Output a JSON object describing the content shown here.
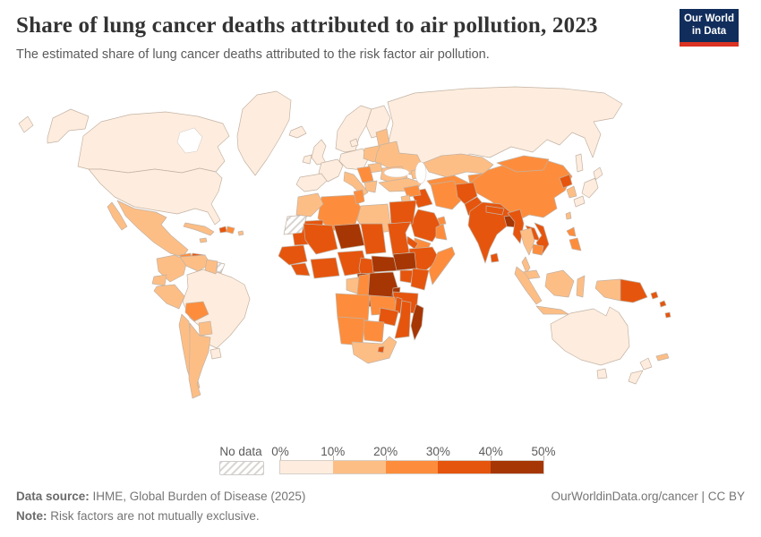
{
  "header": {
    "title": "Share of lung cancer deaths attributed to air pollution, 2023",
    "subtitle": "The estimated share of lung cancer deaths attributed to the risk factor air pollution.",
    "logo": {
      "line1": "Our World",
      "line2": "in Data",
      "bg_color": "#102D5C",
      "stripe_color": "#DB3223"
    }
  },
  "legend": {
    "no_data_label": "No data",
    "tick_labels": [
      "0%",
      "10%",
      "20%",
      "30%",
      "40%",
      "50%"
    ],
    "bin_colors": [
      "#feedde",
      "#fdbe85",
      "#fd8d3c",
      "#e6550d",
      "#a63603"
    ]
  },
  "footer": {
    "datasource_label": "Data source:",
    "datasource_text": " IHME, Global Burden of Disease (2025)",
    "note_label": "Note:",
    "note_text": " Risk factors are not mutually exclusive.",
    "right_text": "OurWorldinData.org/cancer | CC BY"
  },
  "map": {
    "water_color": "#ffffff",
    "border_color": "#c3b2a3",
    "hatch_color": "#d8d4d1"
  },
  "chart_data": {
    "type": "heatmap",
    "subtype": "choropleth_world_map",
    "title": "Share of lung cancer deaths attributed to air pollution, 2023",
    "subtitle": "The estimated share of lung cancer deaths attributed to the risk factor air pollution.",
    "unit": "share of lung cancer deaths",
    "year": 2023,
    "legend_position": "bottom",
    "bins": [
      {
        "range": "0-10%",
        "color": "#feedde"
      },
      {
        "range": "10-20%",
        "color": "#fdbe85"
      },
      {
        "range": "20-30%",
        "color": "#fd8d3c"
      },
      {
        "range": "30-40%",
        "color": "#e6550d"
      },
      {
        "range": "40-50%",
        "color": "#a63603"
      }
    ],
    "no_data": {
      "label": "No data",
      "style": "hatched"
    },
    "regions": {
      "united-states": {
        "label": "United States",
        "bin": 0
      },
      "canada": {
        "label": "Canada",
        "bin": 0
      },
      "greenland": {
        "label": "Greenland",
        "bin": 0
      },
      "iceland": {
        "label": "Iceland",
        "bin": 0
      },
      "mexico": {
        "label": "Mexico",
        "bin": 1
      },
      "guatemala": {
        "label": "Guatemala",
        "bin": 2
      },
      "honduras-nicaragua": {
        "label": "Honduras / Nicaragua",
        "bin": 3
      },
      "costa-rica-panama": {
        "label": "Costa Rica / Panama",
        "bin": 1
      },
      "cuba": {
        "label": "Cuba",
        "bin": 1
      },
      "jamaica": {
        "label": "Jamaica",
        "bin": 1
      },
      "haiti": {
        "label": "Haiti",
        "bin": 3
      },
      "dominican-republic": {
        "label": "Dominican Republic",
        "bin": 2
      },
      "puerto-rico": {
        "label": "Puerto Rico",
        "bin": 1
      },
      "brazil": {
        "label": "Brazil",
        "bin": 0
      },
      "colombia": {
        "label": "Colombia",
        "bin": 1
      },
      "venezuela": {
        "label": "Venezuela",
        "bin": 1
      },
      "guyana-suriname": {
        "label": "Guyana / Suriname",
        "bin": 1
      },
      "french-guiana": {
        "label": "French Guiana",
        "bin": "nd"
      },
      "ecuador": {
        "label": "Ecuador",
        "bin": 1
      },
      "peru": {
        "label": "Peru",
        "bin": 1
      },
      "bolivia": {
        "label": "Bolivia",
        "bin": 2
      },
      "paraguay": {
        "label": "Paraguay",
        "bin": 1
      },
      "chile": {
        "label": "Chile",
        "bin": 1
      },
      "argentina": {
        "label": "Argentina",
        "bin": 1
      },
      "uruguay": {
        "label": "Uruguay",
        "bin": 0
      },
      "norway-sweden": {
        "label": "Norway / Sweden",
        "bin": 0
      },
      "finland": {
        "label": "Finland",
        "bin": 0
      },
      "denmark": {
        "label": "Denmark",
        "bin": 0
      },
      "united-kingdom": {
        "label": "United Kingdom",
        "bin": 0
      },
      "ireland": {
        "label": "Ireland",
        "bin": 0
      },
      "germany-central-europe": {
        "label": "Germany / Central Europe",
        "bin": 0
      },
      "france": {
        "label": "France",
        "bin": 0
      },
      "spain-portugal": {
        "label": "Spain / Portugal",
        "bin": 0
      },
      "poland": {
        "label": "Poland",
        "bin": 1
      },
      "baltic-states": {
        "label": "Baltic states",
        "bin": 1
      },
      "ukraine-belarus": {
        "label": "Ukraine / Belarus",
        "bin": 1
      },
      "hungary-slovakia": {
        "label": "Hungary / Slovakia",
        "bin": 1
      },
      "romania-bulgaria": {
        "label": "Romania / Bulgaria",
        "bin": 1
      },
      "western-balkans": {
        "label": "Western Balkans",
        "bin": 2
      },
      "greece": {
        "label": "Greece",
        "bin": 1
      },
      "italy": {
        "label": "Italy",
        "bin": 1
      },
      "turkey": {
        "label": "Turkey",
        "bin": 1
      },
      "caucasus": {
        "label": "Caucasus",
        "bin": 1
      },
      "russia": {
        "label": "Russia",
        "bin": 0
      },
      "kazakhstan": {
        "label": "Kazakhstan",
        "bin": 1
      },
      "uzbekistan-turkmenistan": {
        "label": "Uzbekistan / Turkmenistan",
        "bin": 2
      },
      "kyrgyzstan-tajikistan": {
        "label": "Kyrgyzstan / Tajikistan",
        "bin": 2
      },
      "china": {
        "label": "China",
        "bin": 2
      },
      "mongolia": {
        "label": "Mongolia",
        "bin": 2
      },
      "north-korea": {
        "label": "North Korea",
        "bin": 3
      },
      "south-korea": {
        "label": "South Korea",
        "bin": 1
      },
      "japan": {
        "label": "Japan",
        "bin": 0
      },
      "taiwan": {
        "label": "Taiwan",
        "bin": 1
      },
      "iran": {
        "label": "Iran",
        "bin": 2
      },
      "afghanistan": {
        "label": "Afghanistan",
        "bin": 3
      },
      "pakistan": {
        "label": "Pakistan",
        "bin": 3
      },
      "iraq": {
        "label": "Iraq",
        "bin": 3
      },
      "syria": {
        "label": "Syria",
        "bin": 2
      },
      "jordan-israel": {
        "label": "Jordan / Israel",
        "bin": 1
      },
      "saudi-arabia": {
        "label": "Saudi Arabia",
        "bin": 3
      },
      "yemen": {
        "label": "Yemen",
        "bin": 2
      },
      "oman": {
        "label": "Oman",
        "bin": 2
      },
      "gulf-states": {
        "label": "Gulf states",
        "bin": 2
      },
      "india": {
        "label": "India",
        "bin": 3
      },
      "nepal": {
        "label": "Nepal",
        "bin": 3
      },
      "bangladesh": {
        "label": "Bangladesh",
        "bin": 4
      },
      "sri-lanka": {
        "label": "Sri Lanka",
        "bin": 3
      },
      "myanmar": {
        "label": "Myanmar",
        "bin": 3
      },
      "laos": {
        "label": "Laos",
        "bin": 3
      },
      "vietnam": {
        "label": "Vietnam",
        "bin": 3
      },
      "cambodia": {
        "label": "Cambodia",
        "bin": 2
      },
      "thailand": {
        "label": "Thailand",
        "bin": 1
      },
      "malaysia": {
        "label": "Malaysia",
        "bin": 1
      },
      "indonesia": {
        "label": "Indonesia",
        "bin": 1
      },
      "philippines": {
        "label": "Philippines",
        "bin": 2
      },
      "timor-leste": {
        "label": "Timor-Leste",
        "bin": 2
      },
      "papua-new-guinea": {
        "label": "Papua New Guinea",
        "bin": 3
      },
      "solomon-islands": {
        "label": "Solomon Islands",
        "bin": 3
      },
      "vanuatu": {
        "label": "Vanuatu",
        "bin": 3
      },
      "new-caledonia": {
        "label": "New Caledonia",
        "bin": 1
      },
      "algeria": {
        "label": "Algeria",
        "bin": 2
      },
      "tunisia": {
        "label": "Tunisia",
        "bin": 2
      },
      "libya": {
        "label": "Libya",
        "bin": 1
      },
      "egypt": {
        "label": "Egypt",
        "bin": 3
      },
      "mauritania": {
        "label": "Mauritania",
        "bin": 3
      },
      "western-sahara": {
        "label": "Western Sahara",
        "bin": "nd"
      },
      "morocco": {
        "label": "Morocco",
        "bin": 1
      },
      "mali": {
        "label": "Mali",
        "bin": 3
      },
      "niger": {
        "label": "Niger",
        "bin": 4
      },
      "chad": {
        "label": "Chad",
        "bin": 3
      },
      "sudan": {
        "label": "Sudan",
        "bin": 3
      },
      "eritrea-djibouti": {
        "label": "Eritrea / Djibouti",
        "bin": 3
      },
      "ethiopia": {
        "label": "Ethiopia",
        "bin": 3
      },
      "somalia": {
        "label": "Somalia",
        "bin": 2
      },
      "senegal-guinea": {
        "label": "Senegal / Guinea",
        "bin": 3
      },
      "sierra-leone-liberia": {
        "label": "Sierra Leone / Liberia",
        "bin": 3
      },
      "cote-divoire-ghana": {
        "label": "Côte d'Ivoire / Ghana",
        "bin": 3
      },
      "nigeria": {
        "label": "Nigeria",
        "bin": 3
      },
      "cameroon": {
        "label": "Cameroon",
        "bin": 3
      },
      "central-african-republic": {
        "label": "Central African Republic",
        "bin": 4
      },
      "south-sudan": {
        "label": "South Sudan",
        "bin": 4
      },
      "uganda": {
        "label": "Uganda",
        "bin": 3
      },
      "kenya": {
        "label": "Kenya",
        "bin": 3
      },
      "dr-congo": {
        "label": "Democratic Republic of Congo",
        "bin": 4
      },
      "rwanda-burundi": {
        "label": "Rwanda / Burundi",
        "bin": 4
      },
      "gabon": {
        "label": "Gabon",
        "bin": 1
      },
      "congo": {
        "label": "Congo",
        "bin": 2
      },
      "tanzania": {
        "label": "Tanzania",
        "bin": 3
      },
      "angola": {
        "label": "Angola",
        "bin": 2
      },
      "zambia": {
        "label": "Zambia",
        "bin": 2
      },
      "malawi": {
        "label": "Malawi",
        "bin": 3
      },
      "mozambique": {
        "label": "Mozambique",
        "bin": 3
      },
      "zimbabwe": {
        "label": "Zimbabwe",
        "bin": 3
      },
      "botswana": {
        "label": "Botswana",
        "bin": 2
      },
      "namibia": {
        "label": "Namibia",
        "bin": 2
      },
      "south-africa": {
        "label": "South Africa",
        "bin": 1
      },
      "lesotho": {
        "label": "Lesotho",
        "bin": 3
      },
      "madagascar": {
        "label": "Madagascar",
        "bin": 4
      },
      "australia": {
        "label": "Australia",
        "bin": 0
      },
      "new-zealand": {
        "label": "New Zealand",
        "bin": 0
      }
    }
  }
}
